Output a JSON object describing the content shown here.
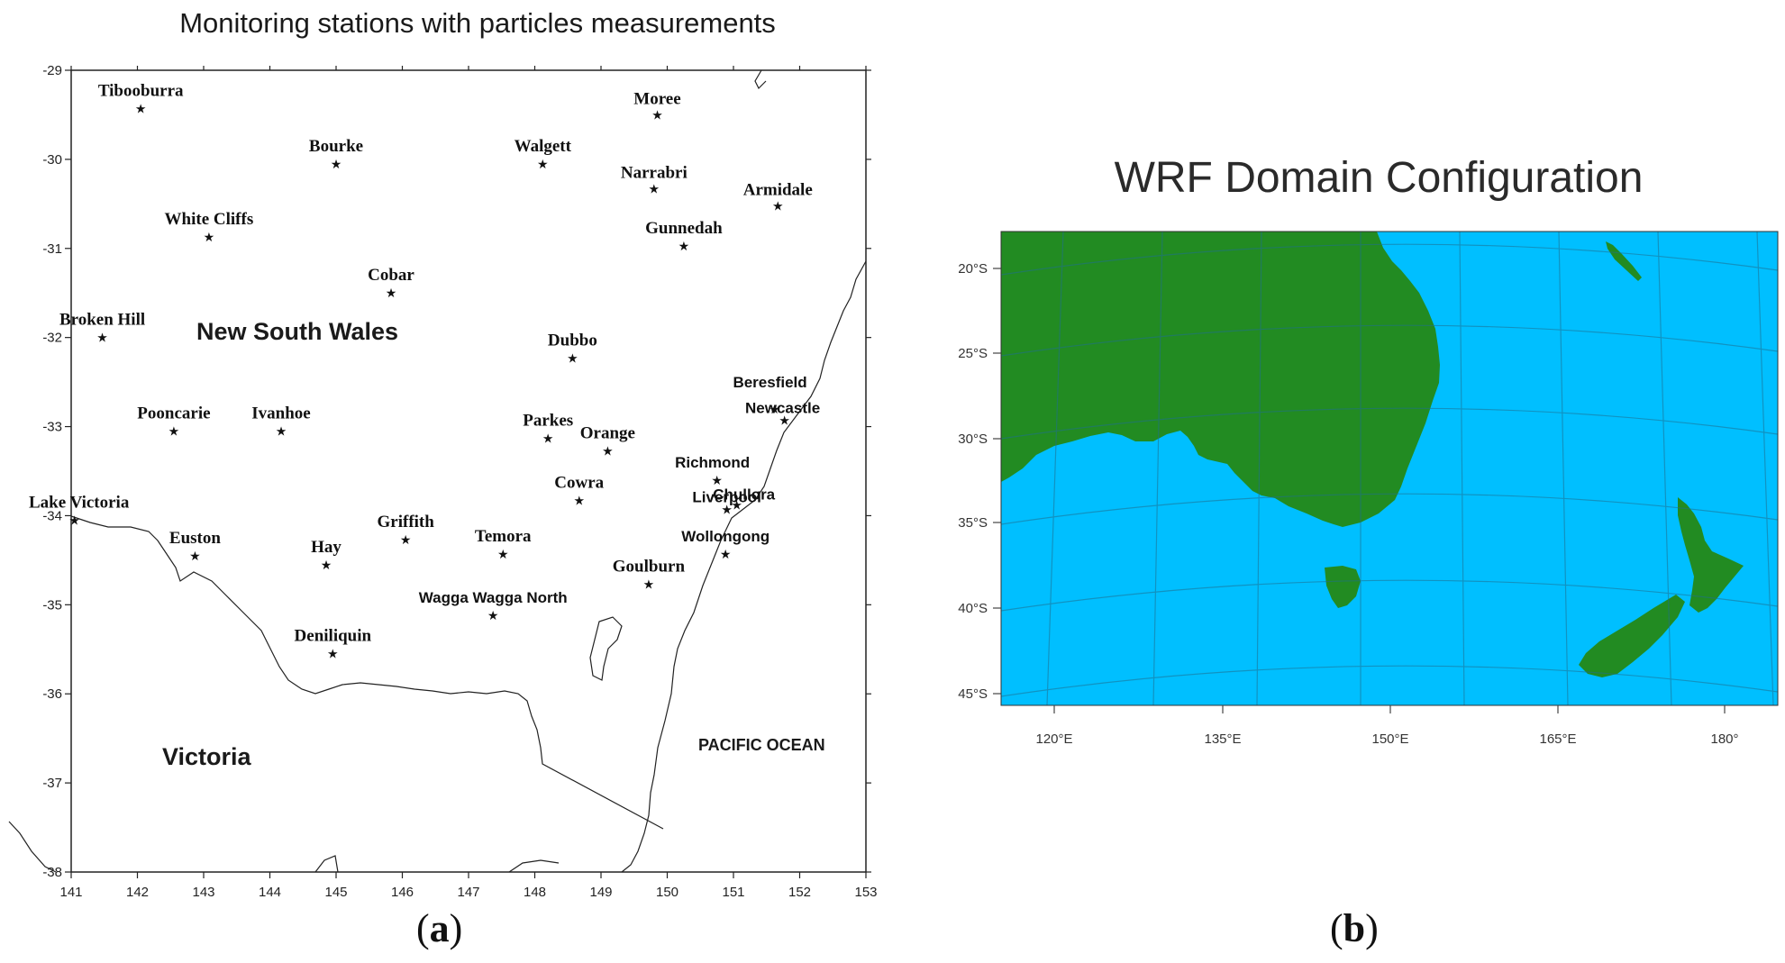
{
  "panel_a": {
    "title": "Monitoring stations with particles measurements",
    "caption_letter": "a",
    "x_ticks": [
      "141",
      "142",
      "143",
      "144",
      "145",
      "146",
      "147",
      "148",
      "149",
      "150",
      "151",
      "152",
      "153"
    ],
    "y_ticks": [
      "-29",
      "-30",
      "-31",
      "-32",
      "-33",
      "-34",
      "-35",
      "-36",
      "-37",
      "-38"
    ],
    "x_range": [
      141,
      153
    ],
    "y_range": [
      -38,
      -29
    ],
    "regions": {
      "nsw": "New South Wales",
      "vic": "Victoria",
      "ocean": "PACIFIC OCEAN"
    },
    "stations": [
      {
        "name": "Tibooburra",
        "lon": 142.05,
        "lat": -29.43
      },
      {
        "name": "Moree",
        "lon": 149.85,
        "lat": -29.5
      },
      {
        "name": "Bourke",
        "lon": 145.0,
        "lat": -30.05
      },
      {
        "name": "Walgett",
        "lon": 148.12,
        "lat": -30.05
      },
      {
        "name": "Narrabri",
        "lon": 149.8,
        "lat": -30.33
      },
      {
        "name": "Armidale",
        "lon": 151.67,
        "lat": -30.52
      },
      {
        "name": "White Cliffs",
        "lon": 143.08,
        "lat": -30.87
      },
      {
        "name": "Gunnedah",
        "lon": 150.25,
        "lat": -30.97
      },
      {
        "name": "Cobar",
        "lon": 145.83,
        "lat": -31.5
      },
      {
        "name": "Broken Hill",
        "lon": 141.47,
        "lat": -32.0
      },
      {
        "name": "Dubbo",
        "lon": 148.57,
        "lat": -32.23
      },
      {
        "name": "Beresfield",
        "lon": 151.62,
        "lat": -32.8
      },
      {
        "name": "Newcastle",
        "lon": 151.77,
        "lat": -32.93
      },
      {
        "name": "Pooncarie",
        "lon": 142.55,
        "lat": -33.05
      },
      {
        "name": "Ivanhoe",
        "lon": 144.17,
        "lat": -33.05
      },
      {
        "name": "Parkes",
        "lon": 148.2,
        "lat": -33.13
      },
      {
        "name": "Orange",
        "lon": 149.1,
        "lat": -33.27
      },
      {
        "name": "Richmond",
        "lon": 150.75,
        "lat": -33.6
      },
      {
        "name": "Chullora",
        "lon": 151.05,
        "lat": -33.88
      },
      {
        "name": "Liverpool",
        "lon": 150.9,
        "lat": -33.93
      },
      {
        "name": "Cowra",
        "lon": 148.67,
        "lat": -33.83
      },
      {
        "name": "Lake Victoria",
        "lon": 141.05,
        "lat": -34.05
      },
      {
        "name": "Euston",
        "lon": 142.87,
        "lat": -34.45
      },
      {
        "name": "Griffith",
        "lon": 146.05,
        "lat": -34.27
      },
      {
        "name": "Temora",
        "lon": 147.52,
        "lat": -34.43
      },
      {
        "name": "Hay",
        "lon": 144.85,
        "lat": -34.55
      },
      {
        "name": "Wollongong",
        "lon": 150.88,
        "lat": -34.43
      },
      {
        "name": "Goulburn",
        "lon": 149.72,
        "lat": -34.77
      },
      {
        "name": "Wagga Wagga North",
        "lon": 147.37,
        "lat": -35.12
      },
      {
        "name": "Deniliquin",
        "lon": 144.95,
        "lat": -35.55
      }
    ]
  },
  "panel_b": {
    "title": "WRF Domain Configuration",
    "caption_letter": "b",
    "lat_ticks": [
      "20°S",
      "25°S",
      "30°S",
      "35°S",
      "40°S",
      "45°S"
    ],
    "lon_ticks": [
      "120°E",
      "135°E",
      "150°E",
      "165°E",
      "180°"
    ],
    "colors": {
      "ocean": "#00bfff",
      "land": "#228b22",
      "graticule": "#1f6f8f"
    }
  }
}
